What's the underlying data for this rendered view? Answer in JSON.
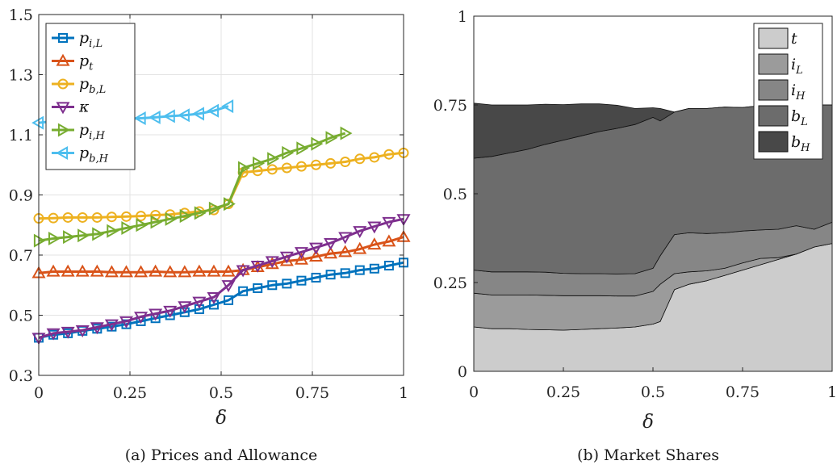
{
  "chart_data": [
    {
      "type": "line",
      "caption": "(a) Prices and Allowance",
      "xlabel": "δ",
      "ylabel": "",
      "xlim": [
        0,
        1
      ],
      "ylim": [
        0.3,
        1.5
      ],
      "xticks": [
        "0",
        "0.25",
        "0.5",
        "0.75",
        "1"
      ],
      "yticks": [
        "0.3",
        "0.5",
        "0.7",
        "0.9",
        "1.1",
        "1.3",
        "1.5"
      ],
      "grid": true,
      "legend_position": "top-left",
      "series": [
        {
          "name": "p_{i,L}",
          "label_main": "p",
          "label_sub": "i,L",
          "color": "#0072BD",
          "marker": "square",
          "x": [
            0,
            0.04,
            0.08,
            0.12,
            0.16,
            0.2,
            0.24,
            0.28,
            0.32,
            0.36,
            0.4,
            0.44,
            0.48,
            0.52,
            0.56,
            0.6,
            0.64,
            0.68,
            0.72,
            0.76,
            0.8,
            0.84,
            0.88,
            0.92,
            0.96,
            1.0
          ],
          "y": [
            0.425,
            0.435,
            0.44,
            0.448,
            0.455,
            0.462,
            0.47,
            0.48,
            0.49,
            0.5,
            0.51,
            0.52,
            0.535,
            0.55,
            0.58,
            0.59,
            0.6,
            0.605,
            0.615,
            0.625,
            0.635,
            0.64,
            0.65,
            0.655,
            0.665,
            0.675
          ]
        },
        {
          "name": "p_t",
          "label_main": "p",
          "label_sub": "t",
          "color": "#D95319",
          "marker": "triangle-up",
          "x": [
            0,
            0.04,
            0.08,
            0.12,
            0.16,
            0.2,
            0.24,
            0.28,
            0.32,
            0.36,
            0.4,
            0.44,
            0.48,
            0.52,
            0.56,
            0.6,
            0.64,
            0.68,
            0.72,
            0.76,
            0.8,
            0.84,
            0.88,
            0.92,
            0.96,
            1.0
          ],
          "y": [
            0.64,
            0.645,
            0.645,
            0.645,
            0.645,
            0.643,
            0.643,
            0.643,
            0.645,
            0.643,
            0.643,
            0.645,
            0.645,
            0.645,
            0.65,
            0.66,
            0.67,
            0.68,
            0.685,
            0.695,
            0.705,
            0.71,
            0.72,
            0.735,
            0.745,
            0.76
          ]
        },
        {
          "name": "p_{b,L}",
          "label_main": "p",
          "label_sub": "b,L",
          "color": "#EDB120",
          "marker": "circle",
          "x": [
            0,
            0.04,
            0.08,
            0.12,
            0.16,
            0.2,
            0.24,
            0.28,
            0.32,
            0.36,
            0.4,
            0.44,
            0.48,
            0.52,
            0.56,
            0.6,
            0.64,
            0.68,
            0.72,
            0.76,
            0.8,
            0.84,
            0.88,
            0.92,
            0.96,
            1.0
          ],
          "y": [
            0.822,
            0.823,
            0.825,
            0.825,
            0.825,
            0.827,
            0.828,
            0.83,
            0.833,
            0.835,
            0.84,
            0.845,
            0.85,
            0.87,
            0.975,
            0.98,
            0.985,
            0.99,
            0.995,
            1.0,
            1.005,
            1.01,
            1.02,
            1.025,
            1.035,
            1.04
          ]
        },
        {
          "name": "κ",
          "label_main": "κ",
          "label_sub": "",
          "color": "#7E2F8E",
          "marker": "triangle-down",
          "x": [
            0,
            0.04,
            0.08,
            0.12,
            0.16,
            0.2,
            0.24,
            0.28,
            0.32,
            0.36,
            0.4,
            0.44,
            0.48,
            0.52,
            0.56,
            0.6,
            0.64,
            0.68,
            0.72,
            0.76,
            0.8,
            0.84,
            0.88,
            0.92,
            0.96,
            1.0
          ],
          "y": [
            0.425,
            0.44,
            0.445,
            0.45,
            0.46,
            0.47,
            0.48,
            0.495,
            0.505,
            0.515,
            0.53,
            0.545,
            0.56,
            0.6,
            0.65,
            0.665,
            0.68,
            0.695,
            0.71,
            0.725,
            0.74,
            0.76,
            0.78,
            0.795,
            0.81,
            0.82
          ]
        },
        {
          "name": "p_{i,H}",
          "label_main": "p",
          "label_sub": "i,H",
          "color": "#77AC30",
          "marker": "triangle-right",
          "x": [
            0,
            0.04,
            0.08,
            0.12,
            0.16,
            0.2,
            0.24,
            0.28,
            0.32,
            0.36,
            0.4,
            0.44,
            0.48,
            0.52,
            0.56,
            0.6,
            0.64,
            0.68,
            0.72,
            0.76,
            0.8,
            0.84
          ],
          "y": [
            0.748,
            0.755,
            0.76,
            0.765,
            0.77,
            0.78,
            0.79,
            0.8,
            0.81,
            0.82,
            0.83,
            0.84,
            0.855,
            0.87,
            0.99,
            1.005,
            1.02,
            1.04,
            1.055,
            1.07,
            1.09,
            1.105
          ]
        },
        {
          "name": "p_{b,H}",
          "label_main": "p",
          "label_sub": "b,H",
          "color": "#4DBEEE",
          "marker": "triangle-left",
          "x": [
            0,
            0.04,
            0.08,
            0.12,
            0.16,
            0.2,
            0.24,
            0.28,
            0.32,
            0.36,
            0.4,
            0.44,
            0.48,
            0.52
          ],
          "y": [
            1.14,
            1.145,
            1.147,
            1.148,
            1.15,
            1.152,
            1.153,
            1.155,
            1.158,
            1.162,
            1.165,
            1.17,
            1.18,
            1.195
          ]
        }
      ]
    },
    {
      "type": "area",
      "stacked": true,
      "caption": "(b) Market Shares",
      "xlabel": "δ",
      "ylabel": "",
      "xlim": [
        0,
        1
      ],
      "ylim": [
        0,
        1
      ],
      "xticks": [
        "0",
        "0.25",
        "0.5",
        "0.75",
        "1"
      ],
      "yticks": [
        "0",
        "0.25",
        "0.5",
        "0.75",
        "1"
      ],
      "grid": false,
      "legend_position": "top-right",
      "x": [
        0,
        0.05,
        0.1,
        0.15,
        0.2,
        0.25,
        0.3,
        0.35,
        0.4,
        0.45,
        0.5,
        0.52,
        0.56,
        0.6,
        0.65,
        0.7,
        0.75,
        0.8,
        0.85,
        0.9,
        0.95,
        1.0
      ],
      "series": [
        {
          "name": "t",
          "label_main": "t",
          "label_sub": "",
          "color": "#cccccc",
          "values": [
            0.125,
            0.12,
            0.12,
            0.118,
            0.117,
            0.116,
            0.118,
            0.12,
            0.122,
            0.125,
            0.133,
            0.14,
            0.23,
            0.245,
            0.255,
            0.27,
            0.285,
            0.3,
            0.315,
            0.33,
            0.35,
            0.36
          ]
        },
        {
          "name": "i_L",
          "label_main": "i",
          "label_sub": "L",
          "color": "#9b9b9b",
          "values": [
            0.095,
            0.095,
            0.095,
            0.097,
            0.097,
            0.097,
            0.095,
            0.093,
            0.09,
            0.087,
            0.092,
            0.105,
            0.045,
            0.035,
            0.028,
            0.02,
            0.02,
            0.018,
            0.005,
            0.0,
            0.0,
            0.0
          ]
        },
        {
          "name": "i_H",
          "label_main": "i",
          "label_sub": "H",
          "color": "#868686",
          "values": [
            0.065,
            0.065,
            0.065,
            0.065,
            0.065,
            0.063,
            0.062,
            0.062,
            0.062,
            0.063,
            0.065,
            0.08,
            0.11,
            0.11,
            0.105,
            0.1,
            0.09,
            0.08,
            0.08,
            0.08,
            0.05,
            0.06
          ]
        },
        {
          "name": "b_L",
          "label_main": "b",
          "label_sub": "L",
          "color": "#6c6c6c",
          "values": [
            0.315,
            0.325,
            0.335,
            0.345,
            0.36,
            0.375,
            0.388,
            0.4,
            0.41,
            0.42,
            0.425,
            0.38,
            0.345,
            0.35,
            0.352,
            0.354,
            0.348,
            0.35,
            0.35,
            0.34,
            0.35,
            0.33
          ]
        },
        {
          "name": "b_H",
          "label_main": "b",
          "label_sub": "H",
          "color": "#484848",
          "values": [
            0.155,
            0.145,
            0.135,
            0.125,
            0.113,
            0.1,
            0.09,
            0.078,
            0.065,
            0.045,
            0.027,
            0.035,
            0.0,
            0.0,
            0.0,
            0.0,
            0.0,
            0.0,
            0.0,
            0.0,
            0.0,
            0.0
          ]
        }
      ]
    }
  ]
}
